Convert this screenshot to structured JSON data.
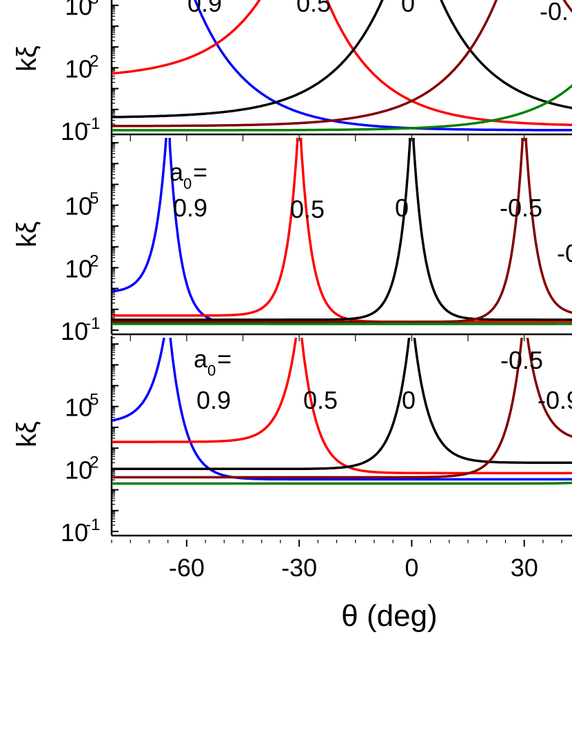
{
  "chart_data": [
    {
      "type": "line",
      "panel": "top",
      "xlabel": "",
      "ylabel": "kξ",
      "yscale": "log",
      "xlim": [
        -80,
        60
      ],
      "ylim_log10": [
        -1.2,
        8.4
      ],
      "yticks": [
        {
          "label": "10",
          "sup": "-1"
        },
        {
          "label": "10",
          "sup": "2"
        },
        {
          "label": "10",
          "sup": "5"
        }
      ],
      "legend_heading": "",
      "series": [
        {
          "name": "0.9",
          "color": "#0000ff",
          "peak_x": -65,
          "width": 14,
          "floor_left": 3.2,
          "floor_right": -1.0,
          "label": "0.9"
        },
        {
          "name": "0.5",
          "color": "#ff0000",
          "peak_x": -30,
          "width": 14,
          "floor_left": 1.5,
          "floor_right": -0.8,
          "label": "0.5"
        },
        {
          "name": "0",
          "color": "#000000",
          "peak_x": 0,
          "width": 14,
          "floor_left": -0.4,
          "floor_right": -0.4,
          "label": "0"
        },
        {
          "name": "-0.5",
          "color": "#800000",
          "peak_x": 30,
          "width": 14,
          "floor_left": -0.8,
          "floor_right": 1.5,
          "label": "-0."
        },
        {
          "name": "-0.9",
          "color": "#008000",
          "peak_x": 65,
          "width": 14,
          "floor_left": -1.0,
          "floor_right": 3.2,
          "label": ""
        }
      ]
    },
    {
      "type": "line",
      "panel": "middle",
      "xlabel": "",
      "ylabel": "kξ",
      "yscale": "log",
      "xlim": [
        -80,
        60
      ],
      "ylim_log10": [
        -1.2,
        8.4
      ],
      "yticks": [
        {
          "label": "10",
          "sup": "-1"
        },
        {
          "label": "10",
          "sup": "2"
        },
        {
          "label": "10",
          "sup": "5"
        }
      ],
      "legend_heading": "a",
      "legend_sub": "0",
      "legend_eq": "=",
      "series": [
        {
          "name": "0.9",
          "color": "#0000ff",
          "peak_x": -65,
          "width": 3,
          "floor_left": 0.8,
          "floor_right": -0.7,
          "label": "0.9"
        },
        {
          "name": "0.5",
          "color": "#ff0000",
          "peak_x": -30,
          "width": 3,
          "floor_left": -0.3,
          "floor_right": -0.6,
          "label": "0.5"
        },
        {
          "name": "0",
          "color": "#000000",
          "peak_x": 0,
          "width": 3,
          "floor_left": -0.5,
          "floor_right": -0.5,
          "label": "0"
        },
        {
          "name": "-0.5",
          "color": "#800000",
          "peak_x": 30,
          "width": 3,
          "floor_left": -0.6,
          "floor_right": -0.3,
          "label": "-0.5"
        },
        {
          "name": "-0.9",
          "color": "#008000",
          "peak_x": 65,
          "width": 3,
          "floor_left": -0.7,
          "floor_right": 0.8,
          "label": "-0"
        }
      ]
    },
    {
      "type": "line",
      "panel": "bottom",
      "xlabel": "θ (deg)",
      "ylabel": "kξ",
      "yscale": "log",
      "xlim": [
        -80,
        60
      ],
      "ylim_log10": [
        -1.2,
        8.4
      ],
      "xticks": [
        -60,
        -30,
        0,
        30
      ],
      "yticks": [
        {
          "label": "10",
          "sup": "-1"
        },
        {
          "label": "10",
          "sup": "2"
        },
        {
          "label": "10",
          "sup": "5"
        }
      ],
      "legend_heading": "a",
      "legend_sub": "0",
      "legend_eq": "=",
      "series": [
        {
          "name": "0.9",
          "color": "#0000ff",
          "peak_x": -65,
          "width": 4,
          "floor_left": 4.2,
          "floor_right": 1.5,
          "label": "0.9"
        },
        {
          "name": "0.5",
          "color": "#ff0000",
          "peak_x": -30,
          "width": 4,
          "floor_left": 3.3,
          "floor_right": 1.8,
          "label": "0.5"
        },
        {
          "name": "0",
          "color": "#000000",
          "peak_x": 0,
          "width": 4,
          "floor_left": 2.0,
          "floor_right": 2.3,
          "label": "0"
        },
        {
          "name": "-0.5",
          "color": "#800000",
          "peak_x": 30,
          "width": 4,
          "floor_left": 1.6,
          "floor_right": 3.3,
          "label": "-0.5"
        },
        {
          "name": "-0.9",
          "color": "#008000",
          "peak_x": 65,
          "width": 4,
          "floor_left": 1.3,
          "floor_right": 4.2,
          "label": "-0.9"
        }
      ]
    }
  ]
}
